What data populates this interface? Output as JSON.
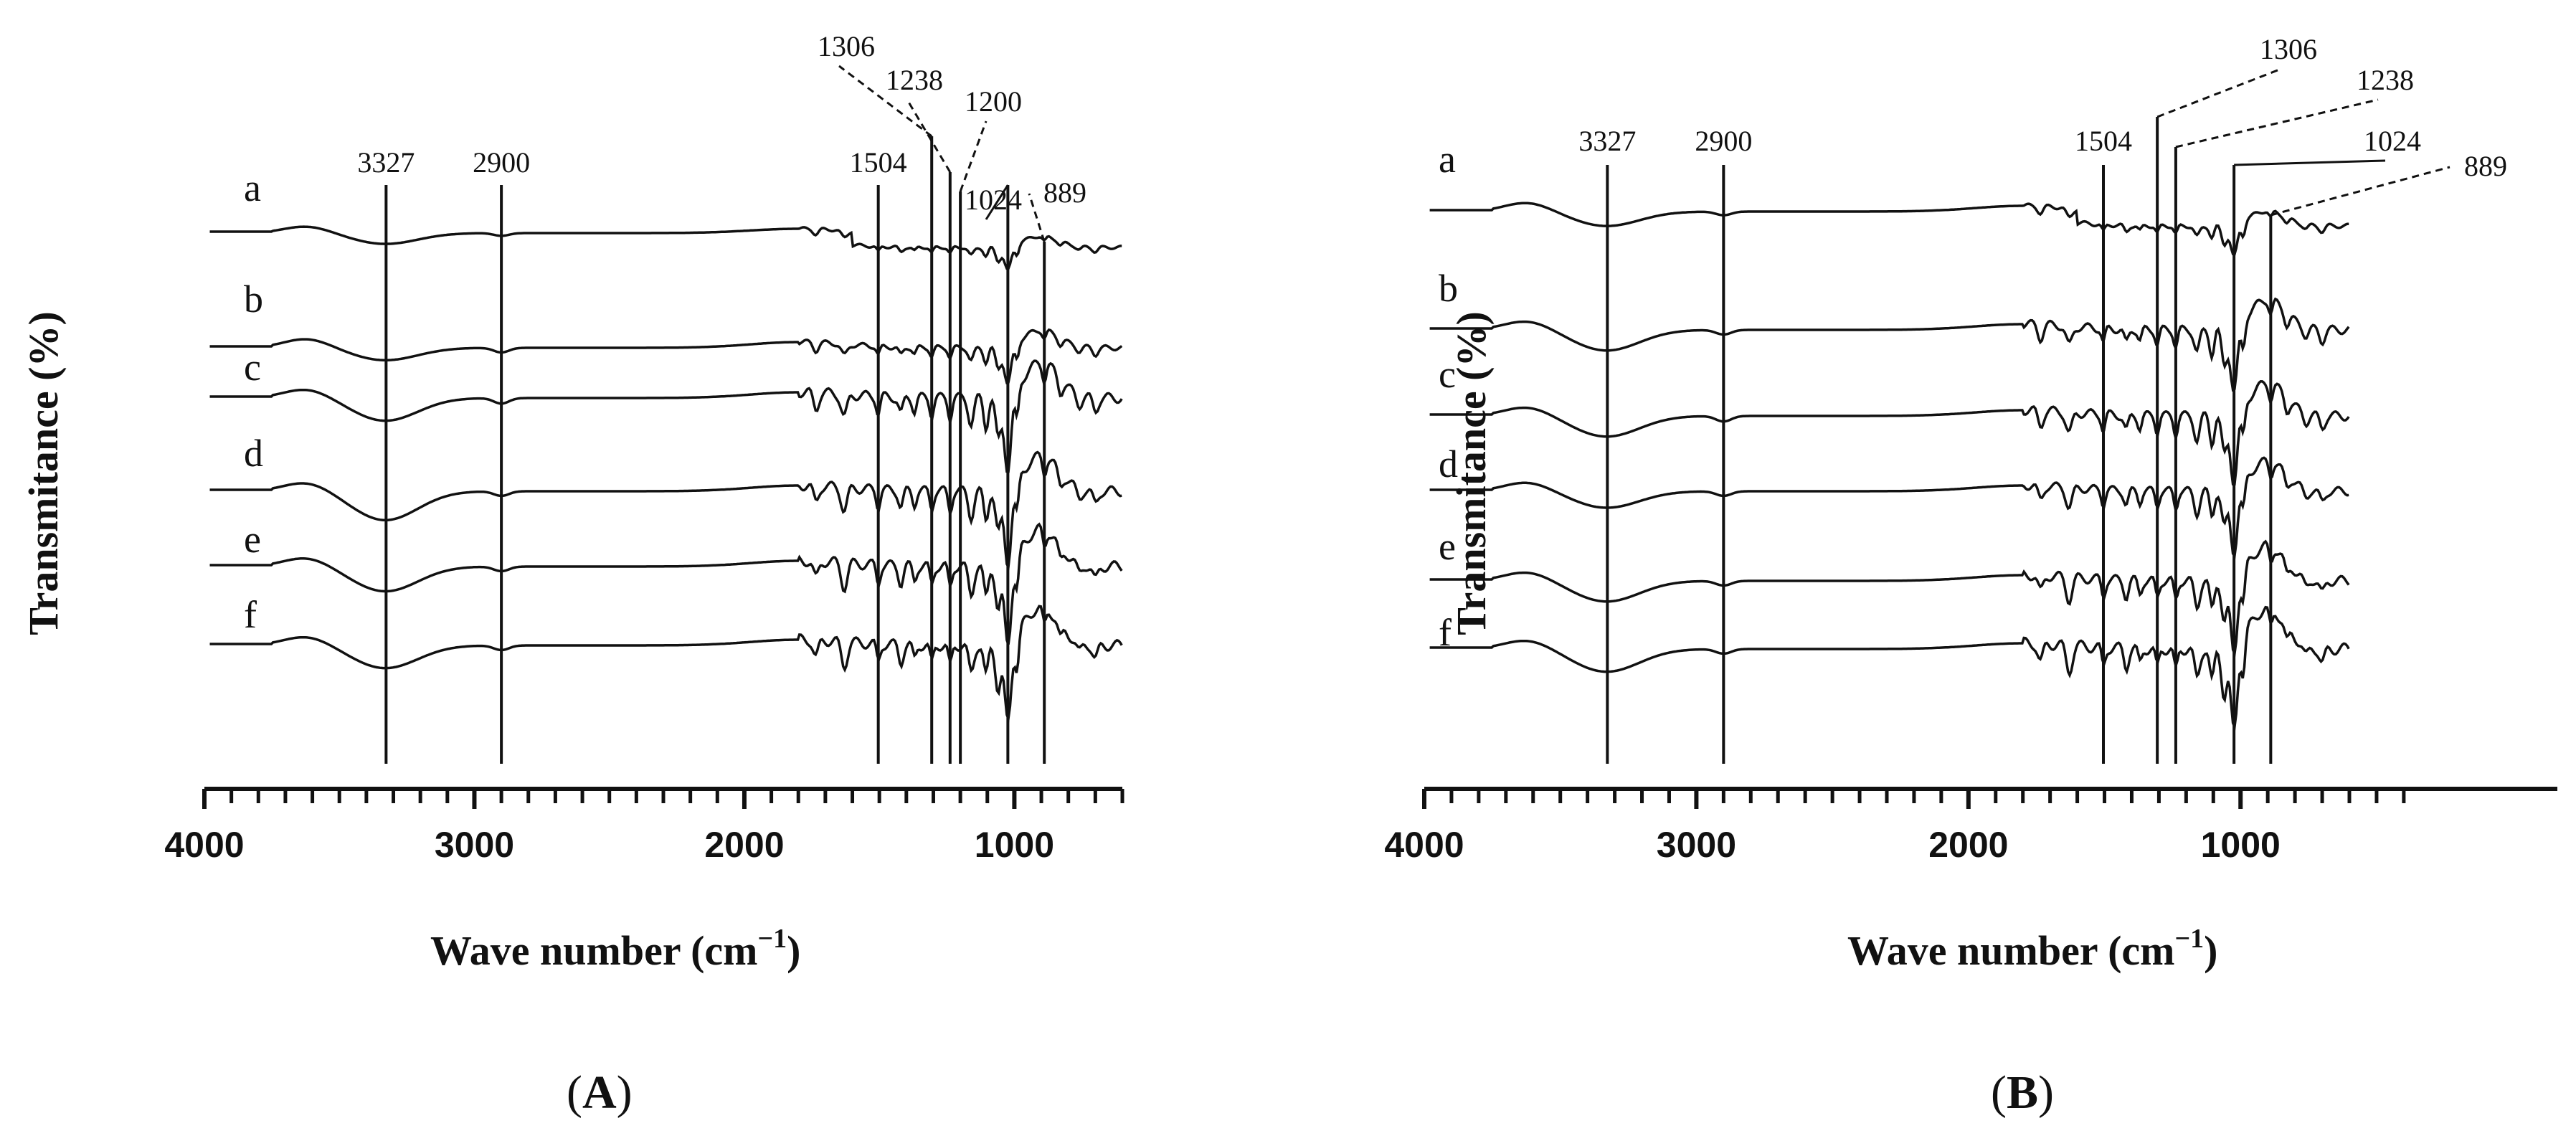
{
  "charts": [
    {
      "panel_label_open": "(",
      "panel_label_letter": "A",
      "panel_label_close": ")",
      "ylabel": "Transmitance (%)",
      "xlabel_main": "Wave number (cm",
      "xlabel_sup": "−1",
      "xlabel_close": ")"
    },
    {
      "panel_label_open": "(",
      "panel_label_letter": "B",
      "panel_label_close": ")",
      "ylabel": "Transmitance (%)",
      "xlabel_main": "Wave number (cm",
      "xlabel_sup": "−1",
      "xlabel_close": ")"
    }
  ],
  "chart_data": [
    {
      "type": "line",
      "title": "",
      "xlabel": "Wave number (cm−1)",
      "ylabel": "Transmitance (%)",
      "xlim": [
        4000,
        600
      ],
      "x_reversed": true,
      "x_ticks": [
        4000,
        3000,
        2000,
        1000
      ],
      "x_tick_labels": [
        "4000",
        "3000",
        "2000",
        "1000"
      ],
      "y_ticks_shown": false,
      "reference_lines": [
        {
          "wavenumber": 3327,
          "label": "3327",
          "style": "solid"
        },
        {
          "wavenumber": 2900,
          "label": "2900",
          "style": "solid"
        },
        {
          "wavenumber": 1504,
          "label": "1504",
          "style": "solid"
        },
        {
          "wavenumber": 1306,
          "label": "1306",
          "style": "dashed-leader"
        },
        {
          "wavenumber": 1238,
          "label": "1238",
          "style": "dashed-leader"
        },
        {
          "wavenumber": 1200,
          "label": "1200",
          "style": "dashed-leader"
        },
        {
          "wavenumber": 1024,
          "label": "1024",
          "style": "solid"
        },
        {
          "wavenumber": 889,
          "label": "889",
          "style": "dashed-leader"
        }
      ],
      "series": [
        {
          "name": "a"
        },
        {
          "name": "b"
        },
        {
          "name": "c"
        },
        {
          "name": "d"
        },
        {
          "name": "e"
        },
        {
          "name": "f"
        }
      ]
    },
    {
      "type": "line",
      "title": "",
      "xlabel": "Wave number (cm−1)",
      "ylabel": "Transmitance (%)",
      "xlim": [
        4000,
        600
      ],
      "x_reversed": true,
      "x_ticks": [
        4000,
        3000,
        2000,
        1000
      ],
      "x_tick_labels": [
        "4000",
        "3000",
        "2000",
        "1000"
      ],
      "y_ticks_shown": false,
      "reference_lines": [
        {
          "wavenumber": 3327,
          "label": "3327",
          "style": "solid"
        },
        {
          "wavenumber": 2900,
          "label": "2900",
          "style": "solid"
        },
        {
          "wavenumber": 1504,
          "label": "1504",
          "style": "solid"
        },
        {
          "wavenumber": 1306,
          "label": "1306",
          "style": "dashed-leader"
        },
        {
          "wavenumber": 1238,
          "label": "1238",
          "style": "dashed-leader"
        },
        {
          "wavenumber": 1024,
          "label": "1024",
          "style": "solid"
        },
        {
          "wavenumber": 889,
          "label": "889",
          "style": "dashed-leader"
        }
      ],
      "series": [
        {
          "name": "a"
        },
        {
          "name": "b"
        },
        {
          "name": "c"
        },
        {
          "name": "d"
        },
        {
          "name": "e"
        },
        {
          "name": "f"
        }
      ]
    }
  ]
}
